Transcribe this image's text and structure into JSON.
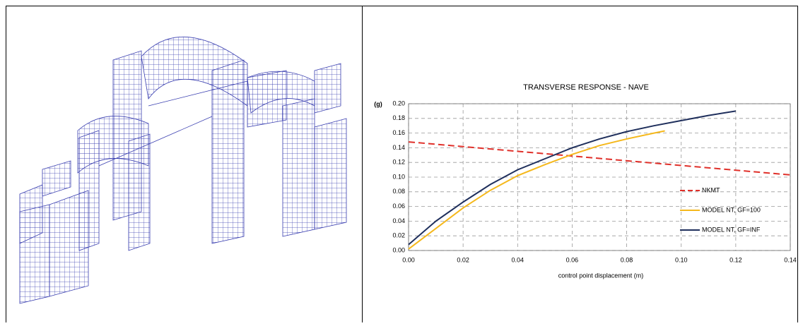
{
  "chart_data": {
    "type": "line",
    "title": "TRANSVERSE RESPONSE - NAVE",
    "y_label": "(g)",
    "x_label": "control point displacement (m)",
    "xlim": [
      0,
      0.14
    ],
    "ylim": [
      0,
      0.2
    ],
    "xticks": [
      {
        "value": 0,
        "label": "0.00"
      },
      {
        "value": 0.02,
        "label": "0.02"
      },
      {
        "value": 0.04,
        "label": "0.04"
      },
      {
        "value": 0.06,
        "label": "0.06"
      },
      {
        "value": 0.08,
        "label": "0.08"
      },
      {
        "value": 0.1,
        "label": "0.10"
      },
      {
        "value": 0.12,
        "label": "0.12"
      },
      {
        "value": 0.14,
        "label": "0.14"
      }
    ],
    "yticks": [
      {
        "value": 0,
        "label": "0.00"
      },
      {
        "value": 0.02,
        "label": "0.02"
      },
      {
        "value": 0.04,
        "label": "0.04"
      },
      {
        "value": 0.06,
        "label": "0.06"
      },
      {
        "value": 0.08,
        "label": "0.08"
      },
      {
        "value": 0.1,
        "label": "0.10"
      },
      {
        "value": 0.12,
        "label": "0.12"
      },
      {
        "value": 0.14,
        "label": "0.14"
      },
      {
        "value": 0.16,
        "label": "0.16"
      },
      {
        "value": 0.18,
        "label": "0.18"
      },
      {
        "value": 0.2,
        "label": "0.20"
      }
    ],
    "grid": true,
    "legend": "right",
    "series": [
      {
        "name": "NKMT",
        "color": "#e0302a",
        "dashed": true,
        "x": [
          0,
          0.14
        ],
        "values": [
          0.148,
          0.103
        ]
      },
      {
        "name": "MODEL NT, GF=100",
        "color": "#f5b81c",
        "dashed": false,
        "x": [
          0,
          0.01,
          0.02,
          0.03,
          0.04,
          0.05,
          0.06,
          0.07,
          0.08,
          0.09,
          0.094
        ],
        "values": [
          0.002,
          0.03,
          0.058,
          0.082,
          0.102,
          0.117,
          0.131,
          0.143,
          0.152,
          0.16,
          0.163
        ]
      },
      {
        "name": "MODEL NT, GF=INF",
        "color": "#1f2f5c",
        "dashed": false,
        "x": [
          0,
          0.01,
          0.02,
          0.03,
          0.04,
          0.05,
          0.06,
          0.07,
          0.08,
          0.09,
          0.1,
          0.11,
          0.12
        ],
        "values": [
          0.008,
          0.04,
          0.066,
          0.09,
          0.11,
          0.125,
          0.14,
          0.152,
          0.162,
          0.17,
          0.177,
          0.184,
          0.19
        ]
      }
    ]
  }
}
